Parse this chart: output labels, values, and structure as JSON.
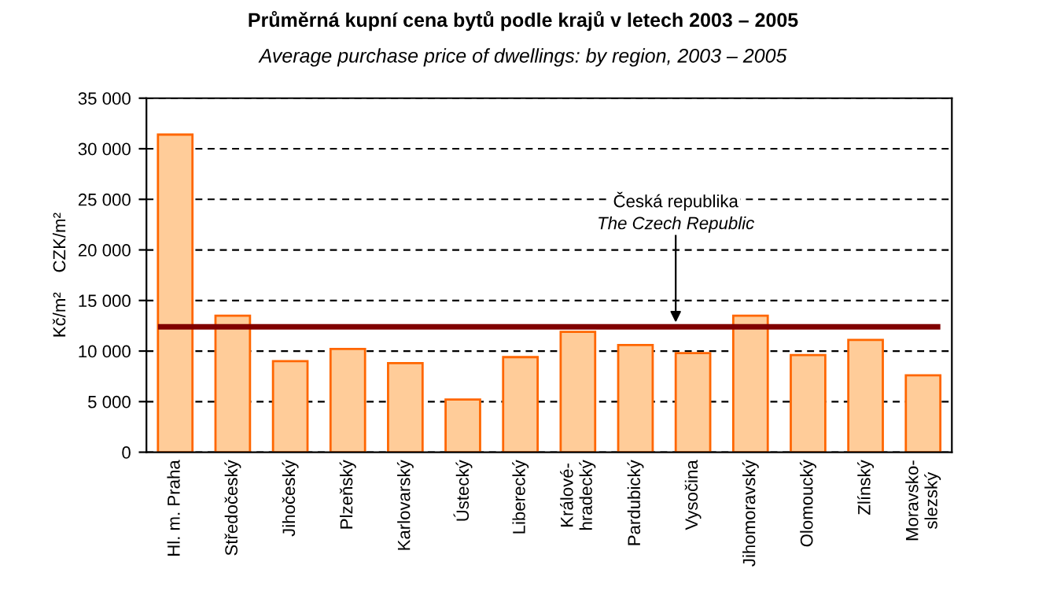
{
  "chart_data": {
    "type": "bar",
    "title": "Průměrná kupní cena bytů podle krajů v letech 2003 – 2005",
    "subtitle": "Average purchase price of dwellings: by region, 2003 – 2005",
    "ylabel": "Kč/m²    CZK/m²",
    "categories": [
      "Hl. m. Praha",
      "Středočeský",
      "Jihočeský",
      "Plzeňský",
      "Karlovarský",
      "Ústecký",
      "Liberecký",
      "Králové-\nhradecký",
      "Pardubický",
      "Vysočina",
      "Jihomoravský",
      "Olomoucký",
      "Zlínský",
      "Moravsko-\nslezský"
    ],
    "values": [
      31400,
      13500,
      9000,
      10200,
      8800,
      5200,
      9400,
      11900,
      10600,
      9800,
      13500,
      9600,
      11100,
      7600
    ],
    "color": "#ffcc99",
    "ylim": [
      0,
      35000
    ],
    "yticks": [
      {
        "value": 0,
        "label": "0"
      },
      {
        "value": 5000,
        "label": "5 000"
      },
      {
        "value": 10000,
        "label": "10 000"
      },
      {
        "value": 15000,
        "label": "15 000"
      },
      {
        "value": 20000,
        "label": "20 000"
      },
      {
        "value": 25000,
        "label": "25 000"
      },
      {
        "value": 30000,
        "label": "30 000"
      },
      {
        "value": 35000,
        "label": "35 000"
      }
    ],
    "grid": "y",
    "line_style": "dashed",
    "ref_lines": [
      {
        "axis": "y",
        "value": 12400,
        "label": "Česká republika\nThe Czech Republic",
        "color": "#800000"
      }
    ]
  }
}
